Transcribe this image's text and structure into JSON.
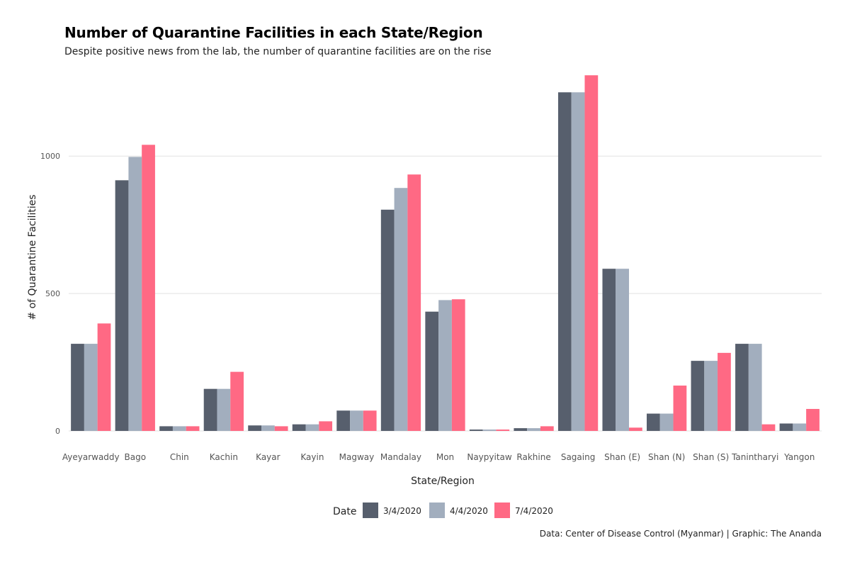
{
  "chart_data": {
    "type": "bar",
    "title": "Number of Quarantine Facilities in each State/Region",
    "subtitle": "Despite positive news from the lab, the number of quarantine facilities are on the rise",
    "xlabel": "State/Region",
    "ylabel": "# of Quarantine Facilities",
    "ylim": [
      0,
      1310
    ],
    "yticks": [
      0,
      500,
      1000
    ],
    "grid": true,
    "legend_title": "Date",
    "legend_position": "bottom",
    "caption": "Data: Center of Disease Control (Myanmar) | Graphic: The Ananda",
    "categories": [
      "Ayeyarwaddy",
      "Bago",
      "Chin",
      "Kachin",
      "Kayar",
      "Kayin",
      "Magway",
      "Mandalay",
      "Mon",
      "Naypyitaw",
      "Rakhine",
      "Sagaing",
      "Shan (E)",
      "Shan (N)",
      "Shan (S)",
      "Tanintharyi",
      "Yangon"
    ],
    "series": [
      {
        "name": "3/4/2020",
        "color": "#575f6d",
        "values": [
          317,
          912,
          17,
          153,
          20,
          24,
          74,
          805,
          434,
          5,
          10,
          1232,
          590,
          63,
          255,
          317,
          27
        ]
      },
      {
        "name": "4/4/2020",
        "color": "#a2aebe",
        "values": [
          317,
          997,
          17,
          153,
          20,
          24,
          74,
          884,
          476,
          5,
          10,
          1232,
          590,
          63,
          255,
          317,
          27
        ]
      },
      {
        "name": "7/4/2020",
        "color": "#ff6984",
        "values": [
          391,
          1041,
          17,
          215,
          17,
          35,
          74,
          933,
          479,
          5,
          17,
          1294,
          12,
          165,
          284,
          24,
          80
        ]
      }
    ]
  }
}
